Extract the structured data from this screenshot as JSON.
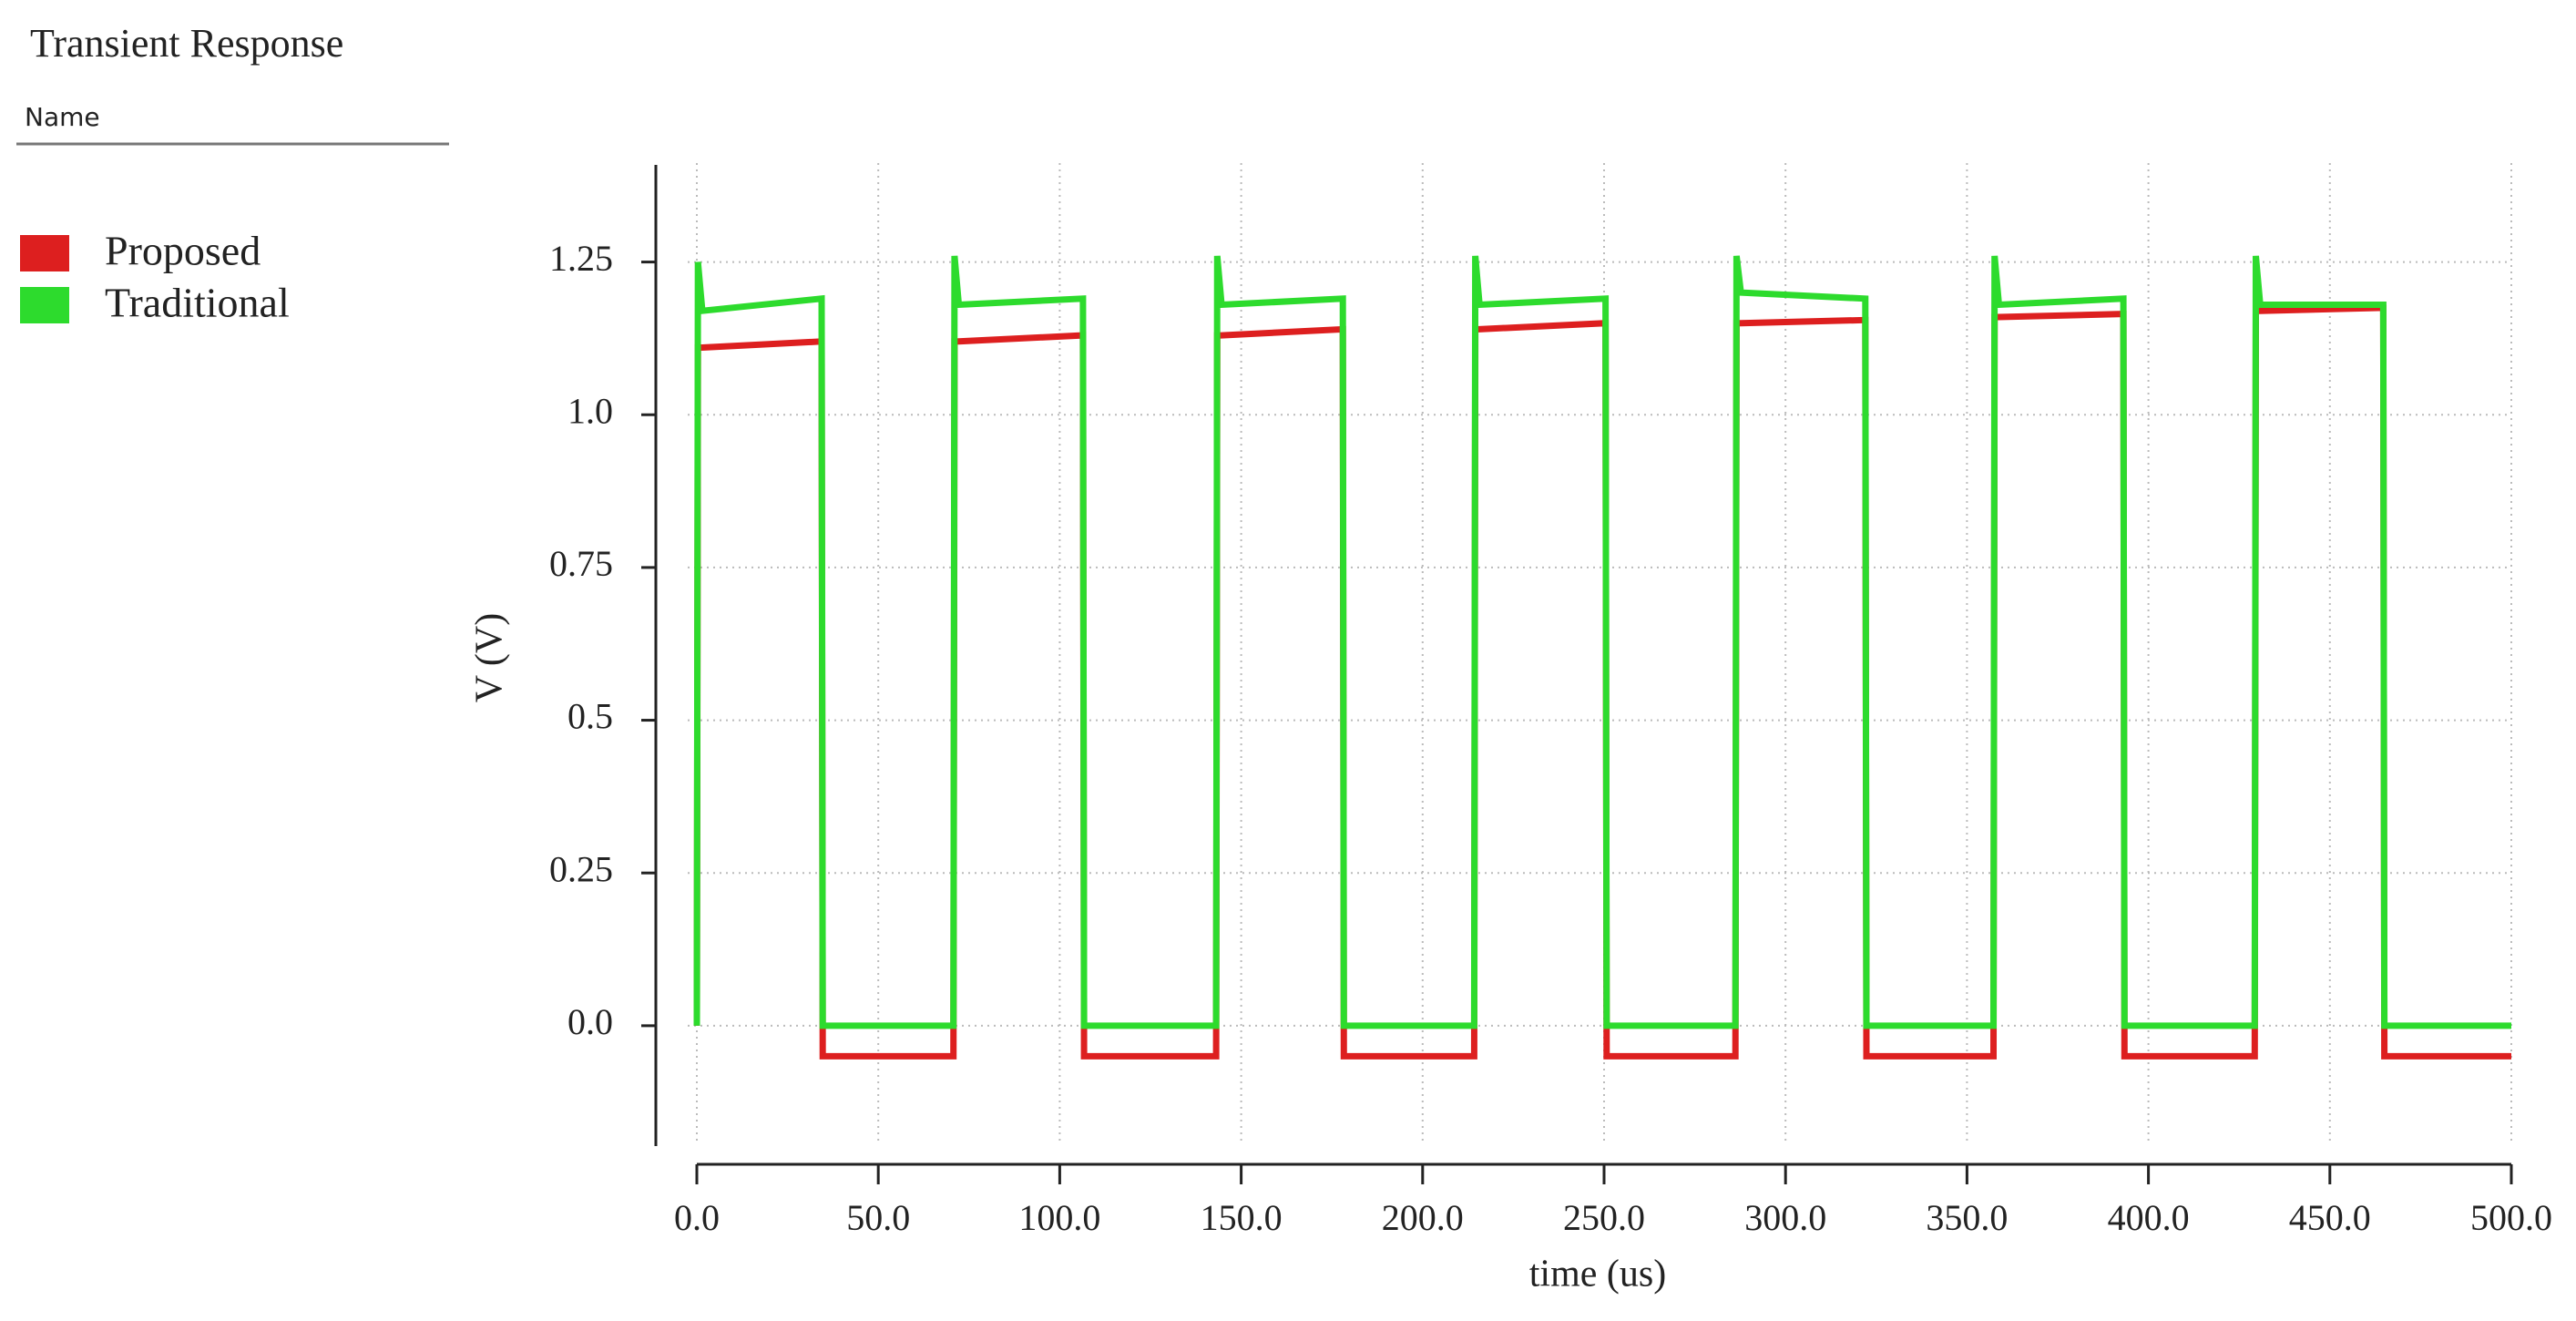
{
  "chart_data": {
    "type": "line",
    "title": "Transient Response",
    "legend_title": "Name",
    "xlabel": "time (us)",
    "ylabel": "V (V)",
    "x": [
      0,
      0.3,
      1.5,
      34.4,
      34.7,
      70.7,
      71.0,
      72.2,
      106.4,
      106.7,
      143.1,
      143.4,
      144.6,
      178.0,
      178.3,
      214.2,
      214.5,
      215.7,
      250.4,
      250.7,
      286.2,
      286.5,
      287.7,
      322.0,
      322.3,
      357.3,
      357.6,
      358.8,
      393.1,
      393.4,
      429.3,
      429.6,
      430.8,
      464.7,
      465.0,
      500
    ],
    "series": [
      {
        "name": "Proposed",
        "color": "#dd1f1f",
        "values": [
          0,
          1.11,
          1.11,
          1.12,
          -0.05,
          -0.05,
          1.12,
          1.12,
          1.13,
          -0.05,
          -0.05,
          1.13,
          1.13,
          1.14,
          -0.05,
          -0.05,
          1.14,
          1.14,
          1.15,
          -0.05,
          -0.05,
          1.15,
          1.15,
          1.155,
          -0.05,
          -0.05,
          1.16,
          1.16,
          1.165,
          -0.05,
          -0.05,
          1.17,
          1.17,
          1.175,
          -0.05,
          -0.05
        ]
      },
      {
        "name": "Traditional",
        "color": "#2ddb2d",
        "values": [
          0,
          1.25,
          1.17,
          1.19,
          0,
          0,
          1.26,
          1.18,
          1.19,
          0,
          0,
          1.26,
          1.18,
          1.19,
          0,
          0,
          1.26,
          1.18,
          1.19,
          0,
          0,
          1.26,
          1.2,
          1.19,
          0,
          0,
          1.26,
          1.18,
          1.19,
          0,
          0,
          1.26,
          1.18,
          1.18,
          0,
          0
        ]
      }
    ],
    "xlim": [
      0,
      500
    ],
    "xticks": [
      {
        "value": 0,
        "label": "0.0"
      },
      {
        "value": 50,
        "label": "50.0"
      },
      {
        "value": 100,
        "label": "100.0"
      },
      {
        "value": 150,
        "label": "150.0"
      },
      {
        "value": 200,
        "label": "200.0"
      },
      {
        "value": 250,
        "label": "250.0"
      },
      {
        "value": 300,
        "label": "300.0"
      },
      {
        "value": 350,
        "label": "350.0"
      },
      {
        "value": 400,
        "label": "400.0"
      },
      {
        "value": 450,
        "label": "450.0"
      },
      {
        "value": 500,
        "label": "500.0"
      }
    ],
    "ylim": [
      -0.2,
      1.4
    ],
    "yticks": [
      {
        "value": 0,
        "label": "0.0"
      },
      0.25,
      0.5,
      0.75,
      {
        "value": 1,
        "label": "1.0"
      },
      1.25
    ],
    "grid": true
  }
}
